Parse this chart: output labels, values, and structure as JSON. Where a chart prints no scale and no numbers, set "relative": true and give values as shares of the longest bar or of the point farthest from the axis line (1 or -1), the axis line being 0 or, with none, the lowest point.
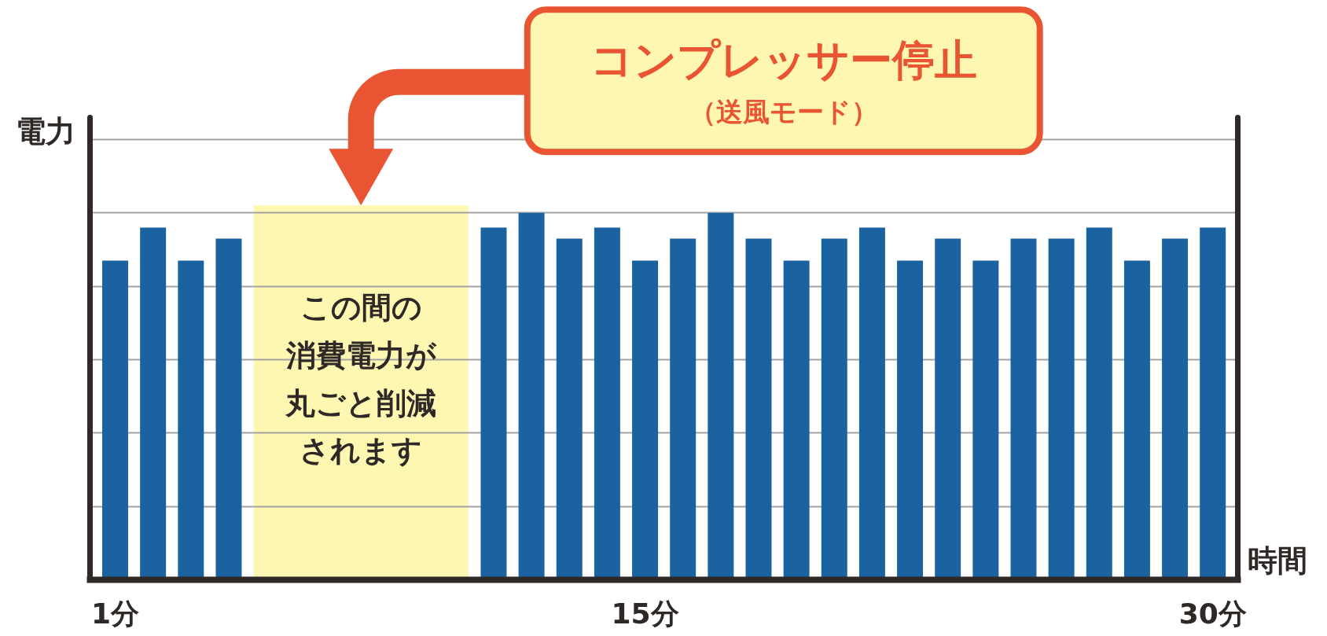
{
  "chart_data": {
    "type": "bar",
    "relative": true,
    "x": [
      1,
      2,
      3,
      4,
      11,
      12,
      13,
      14,
      15,
      16,
      17,
      18,
      19,
      20,
      21,
      22,
      23,
      24,
      25,
      26,
      27,
      28,
      29,
      30
    ],
    "values": [
      0.87,
      0.96,
      0.87,
      0.93,
      0.96,
      1.0,
      0.93,
      0.96,
      0.87,
      0.93,
      1.0,
      0.93,
      0.87,
      0.93,
      0.96,
      0.87,
      0.93,
      0.87,
      0.93,
      0.93,
      0.96,
      0.87,
      0.93,
      0.96
    ],
    "color": "#1a63a0",
    "xlim": [
      0.335,
      30.65
    ],
    "xticks": [
      {
        "value": 1,
        "label": "1分"
      },
      {
        "value": 15,
        "label": "15分"
      },
      {
        "value": 30,
        "label": "30分"
      }
    ],
    "grid": "y",
    "tick_labels": "x",
    "xlabel": "時間",
    "ylabel": "電力",
    "bands": [
      {
        "axis": "x",
        "from": 4.66,
        "to": 10.33,
        "label": "この間の消費電力が丸ごと削減されます",
        "color": "#fef7b2"
      }
    ],
    "annotations": [
      "コンプレッサー停止",
      "（送風モード）"
    ]
  }
}
